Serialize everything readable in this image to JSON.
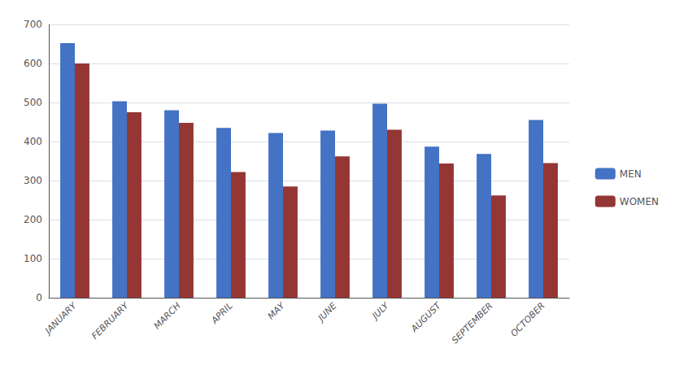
{
  "chart_data": {
    "type": "bar",
    "categories": [
      "JANUARY",
      "FEBRUARY",
      "MARCH",
      "APRIL",
      "MAY",
      "JUNE",
      "JULY",
      "AUGUST",
      "SEPTEMBER",
      "OCTOBER"
    ],
    "series": [
      {
        "name": "MEN",
        "color": "#4472C4",
        "values": [
          652,
          503,
          480,
          435,
          422,
          428,
          497,
          387,
          368,
          455
        ]
      },
      {
        "name": "WOMEN",
        "color": "#943634",
        "values": [
          600,
          475,
          448,
          322,
          285,
          362,
          430,
          344,
          262,
          345
        ]
      }
    ],
    "ylim": [
      0,
      700
    ],
    "yticks": [
      0,
      100,
      200,
      300,
      400,
      500,
      600,
      700
    ],
    "grid": true,
    "legend": "right"
  }
}
